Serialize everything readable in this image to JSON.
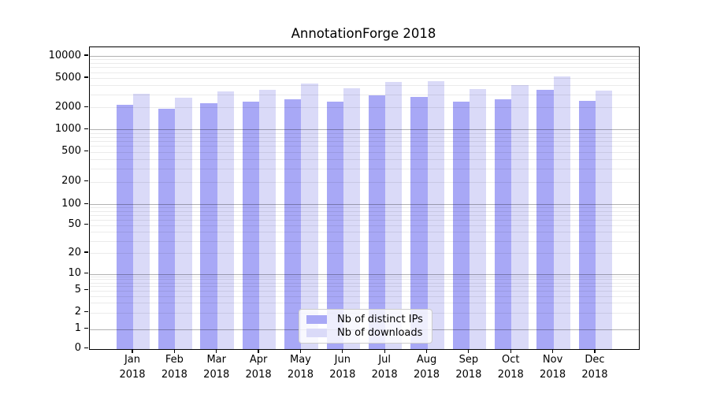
{
  "title": "AnnotationForge 2018",
  "chart_data": {
    "type": "bar",
    "title": "AnnotationForge 2018",
    "yscale": "symlog",
    "grid": true,
    "ylim": [
      0,
      10000
    ],
    "yticks": [
      0,
      1,
      2,
      5,
      10,
      20,
      50,
      100,
      200,
      500,
      1000,
      2000,
      5000,
      10000
    ],
    "categories": [
      {
        "month": "Jan",
        "year": "2018"
      },
      {
        "month": "Feb",
        "year": "2018"
      },
      {
        "month": "Mar",
        "year": "2018"
      },
      {
        "month": "Apr",
        "year": "2018"
      },
      {
        "month": "May",
        "year": "2018"
      },
      {
        "month": "Jun",
        "year": "2018"
      },
      {
        "month": "Jul",
        "year": "2018"
      },
      {
        "month": "Aug",
        "year": "2018"
      },
      {
        "month": "Sep",
        "year": "2018"
      },
      {
        "month": "Oct",
        "year": "2018"
      },
      {
        "month": "Nov",
        "year": "2018"
      },
      {
        "month": "Dec",
        "year": "2018"
      }
    ],
    "series": [
      {
        "name": "Nb of distinct IPs",
        "color": "#a8a8f6",
        "values": [
          2200,
          1950,
          2300,
          2400,
          2600,
          2400,
          2900,
          2800,
          2400,
          2600,
          3500,
          2450
        ]
      },
      {
        "name": "Nb of downloads",
        "color": "#dadaf8",
        "values": [
          3050,
          2700,
          3350,
          3500,
          4200,
          3700,
          4450,
          4600,
          3550,
          4000,
          5250,
          3400
        ]
      }
    ],
    "legend_position": "lower center"
  }
}
